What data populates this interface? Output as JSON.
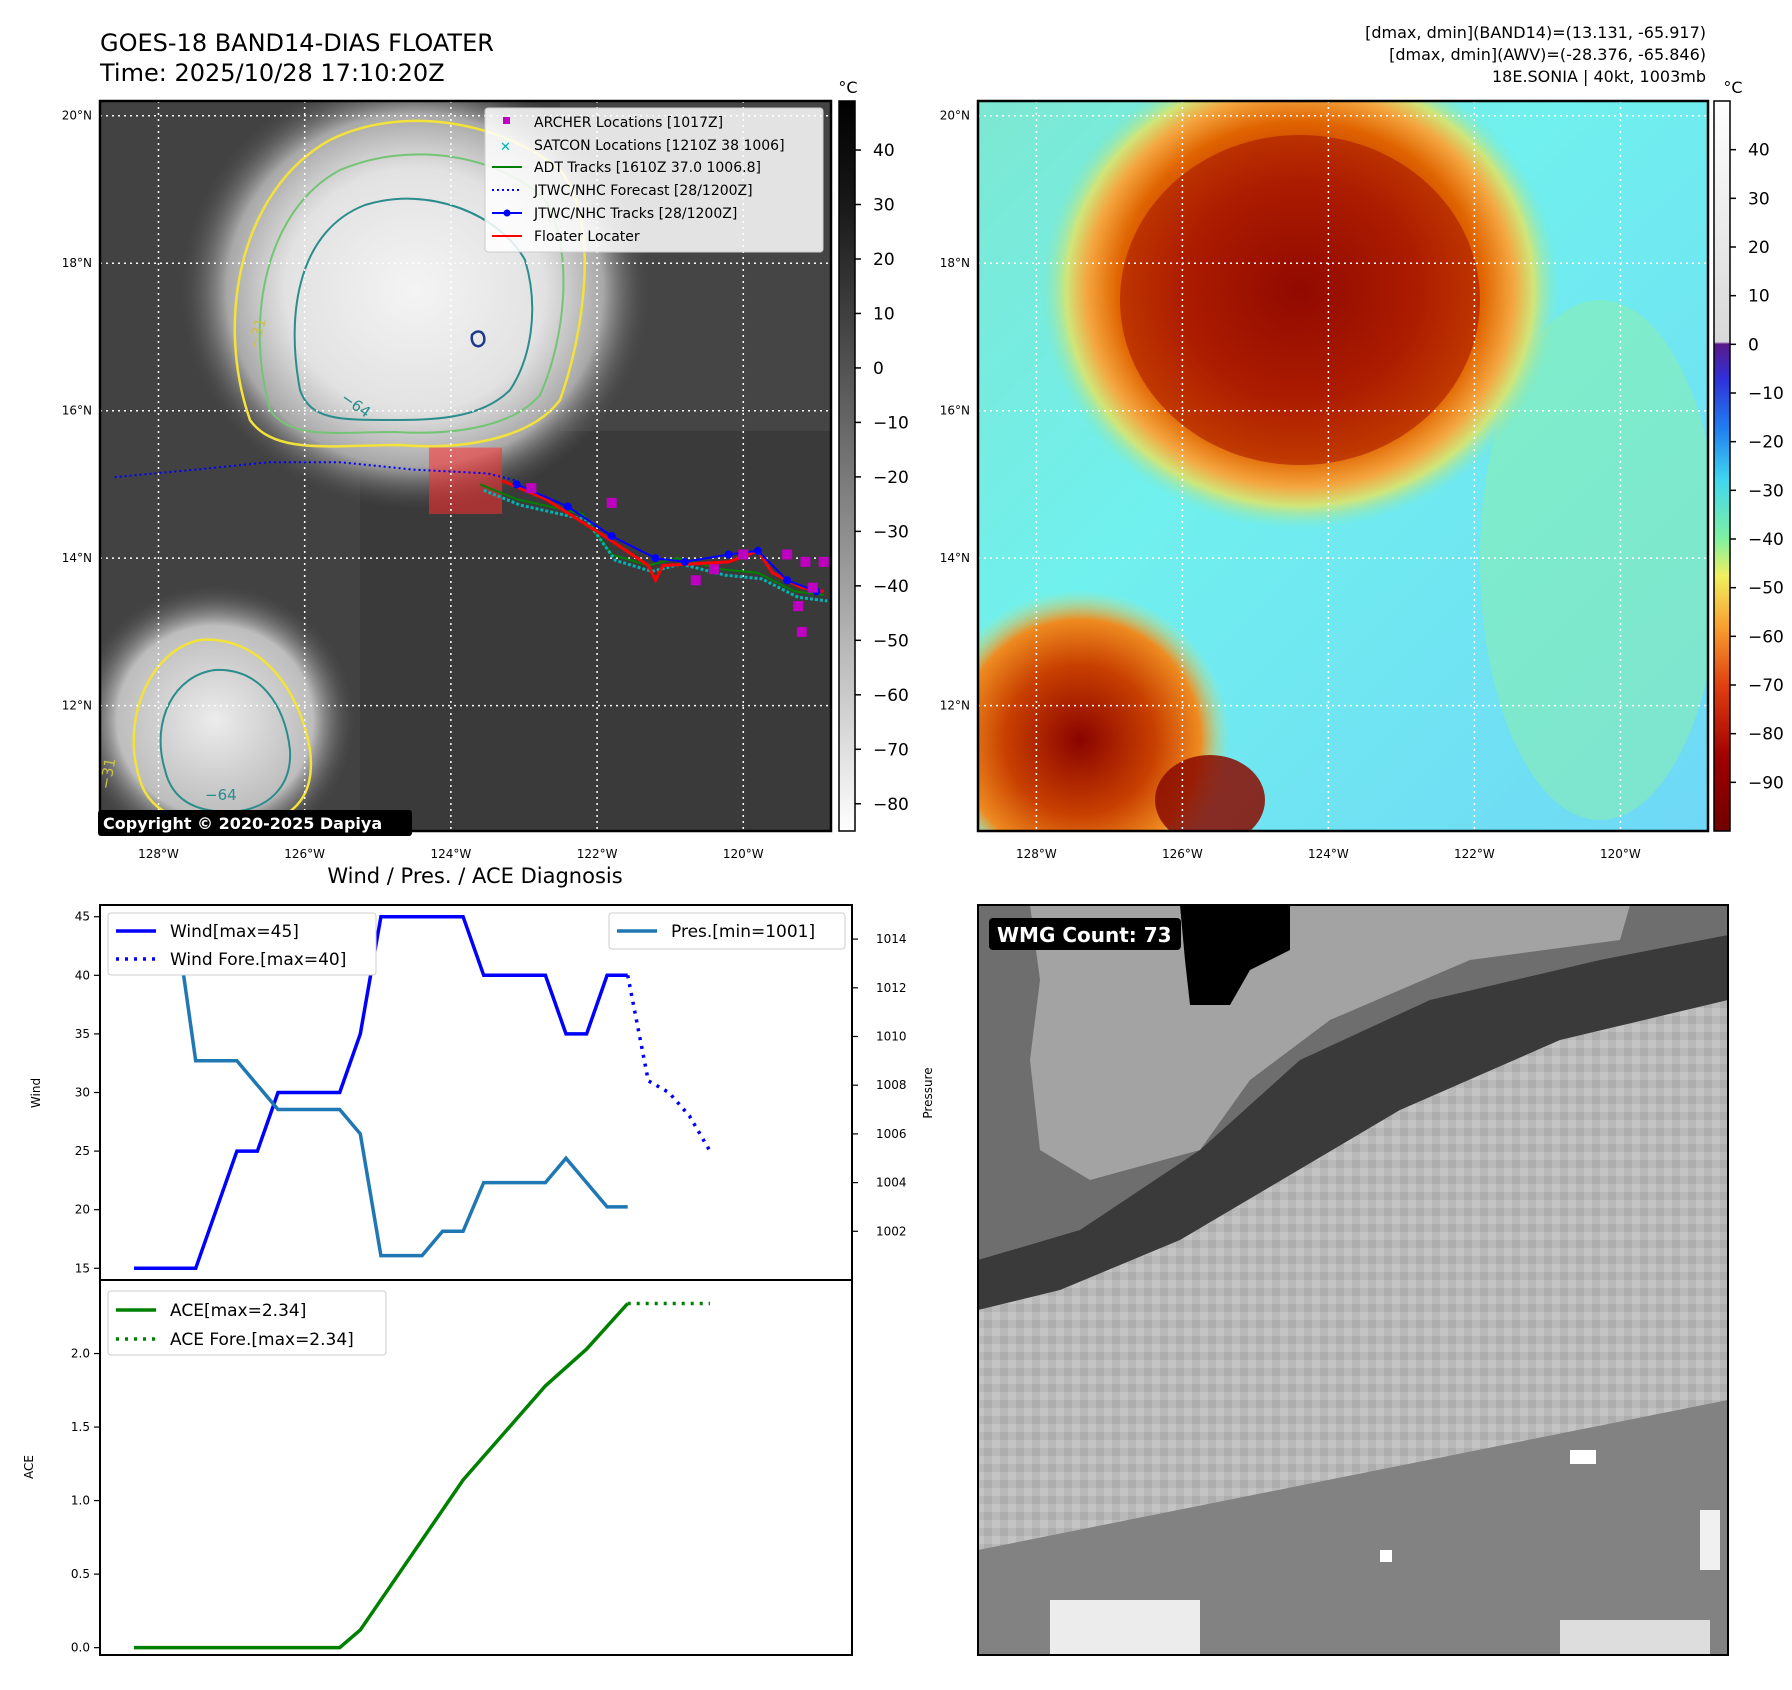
{
  "header": {
    "title_line1": "GOES-18 BAND14-DIAS FLOATER",
    "title_line2": "Time: 2025/10/28 17:10:20Z",
    "info_line1": "[dmax, dmin](BAND14)=(13.131, -65.917)",
    "info_line2": "[dmax, dmin](AWV)=(-28.376, -65.846)",
    "info_line3": "18E.SONIA | 40kt, 1003mb"
  },
  "copyright": "Copyright © 2020-2025 Dapiya",
  "wmg_label": "WMG Count: 73",
  "colors": {
    "wind": "#0000ff",
    "pressure": "#1f77b4",
    "ace": "#008000",
    "archer": "#c000c0",
    "satcon": "#00b4b4",
    "adt": "#008000",
    "floater": "#ff0000",
    "contour_yellow": "#f2e23a",
    "contour_teal": "#2b8c8c"
  },
  "chart_data": [
    {
      "type": "map",
      "panel": "band14",
      "lat_ticks": [
        "20°N",
        "18°N",
        "16°N",
        "14°N",
        "12°N"
      ],
      "lon_ticks": [
        "128°W",
        "126°W",
        "124°W",
        "122°W",
        "120°W"
      ],
      "xlim": [
        -128.8,
        -118.8
      ],
      "ylim": [
        10.3,
        20.2
      ],
      "colorbar": {
        "unit": "°C",
        "ticks": [
          "40",
          "30",
          "20",
          "10",
          "0",
          "−10",
          "−20",
          "−30",
          "−40",
          "−50",
          "−60",
          "−70",
          "−80"
        ],
        "range": [
          -85,
          49
        ]
      },
      "contour_labels": [
        "−64",
        "−64",
        "−31",
        "−31"
      ],
      "legend": [
        {
          "label": "ARCHER Locations [1017Z]",
          "marker": "square",
          "color": "#c000c0"
        },
        {
          "label": "SATCON Locations [1210Z 38 1006]",
          "marker": "x",
          "color": "#00b4b4"
        },
        {
          "label": "ADT Tracks [1610Z 37.0 1006.8]",
          "marker": "line",
          "color": "#008000"
        },
        {
          "label": "JTWC/NHC Forecast [28/1200Z]",
          "marker": "dotted",
          "color": "#0000ff"
        },
        {
          "label": "JTWC/NHC Tracks [28/1200Z]",
          "marker": "line-dot",
          "color": "#0000ff"
        },
        {
          "label": "Floater Locater",
          "marker": "line",
          "color": "#ff0000"
        }
      ],
      "forecast_track": [
        [
          -128.6,
          15.1
        ],
        [
          -127.5,
          15.2
        ],
        [
          -126.5,
          15.3
        ],
        [
          -125.5,
          15.3
        ],
        [
          -124.5,
          15.2
        ],
        [
          -123.5,
          15.15
        ],
        [
          -123.1,
          15.05
        ]
      ],
      "best_track": [
        [
          -123.1,
          15.0
        ],
        [
          -122.4,
          14.7
        ],
        [
          -121.8,
          14.3
        ],
        [
          -121.2,
          14.0
        ],
        [
          -120.8,
          13.95
        ],
        [
          -120.2,
          14.05
        ],
        [
          -119.8,
          14.1
        ],
        [
          -119.4,
          13.7
        ],
        [
          -119.0,
          13.55
        ]
      ],
      "archer_points": [
        [
          -122.9,
          14.95
        ],
        [
          -121.8,
          14.75
        ],
        [
          -120.4,
          13.85
        ],
        [
          -120.65,
          13.7
        ],
        [
          -119.4,
          14.05
        ],
        [
          -119.15,
          13.95
        ],
        [
          -118.9,
          13.95
        ],
        [
          -119.05,
          13.6
        ],
        [
          -119.25,
          13.35
        ],
        [
          -119.2,
          13.0
        ],
        [
          -120.0,
          14.05
        ]
      ],
      "adt_track": [
        [
          -123.6,
          15.0
        ],
        [
          -123.1,
          14.8
        ],
        [
          -122.2,
          14.6
        ],
        [
          -121.8,
          14.05
        ],
        [
          -121.3,
          13.9
        ],
        [
          -120.9,
          14.0
        ],
        [
          -120.3,
          13.85
        ],
        [
          -119.8,
          13.8
        ],
        [
          -119.3,
          13.55
        ],
        [
          -118.9,
          13.5
        ]
      ],
      "floater_track": [
        [
          -123.3,
          15.05
        ],
        [
          -122.7,
          14.8
        ],
        [
          -121.9,
          14.3
        ],
        [
          -121.3,
          13.9
        ],
        [
          -121.2,
          13.7
        ],
        [
          -121.1,
          13.9
        ],
        [
          -120.2,
          13.95
        ],
        [
          -119.8,
          14.1
        ],
        [
          -119.6,
          13.8
        ],
        [
          -119.2,
          13.6
        ],
        [
          -118.9,
          13.55
        ]
      ],
      "floater_box": {
        "lon": [
          -124.3,
          -123.3
        ],
        "lat": [
          14.6,
          15.5
        ]
      }
    },
    {
      "type": "map",
      "panel": "awv",
      "lat_ticks": [
        "20°N",
        "18°N",
        "16°N",
        "14°N",
        "12°N"
      ],
      "lon_ticks": [
        "128°W",
        "126°W",
        "124°W",
        "122°W",
        "120°W"
      ],
      "xlim": [
        -128.8,
        -118.8
      ],
      "ylim": [
        10.3,
        20.2
      ],
      "colorbar": {
        "unit": "°C",
        "ticks": [
          "40",
          "30",
          "20",
          "10",
          "0",
          "−10",
          "−20",
          "−30",
          "−40",
          "−50",
          "−60",
          "−70",
          "−80",
          "−90"
        ],
        "range": [
          -100,
          50
        ]
      }
    },
    {
      "type": "line",
      "panel": "wind_pressure",
      "title": "Wind / Pres. / ACE Diagnosis",
      "ylabel": "Wind",
      "ylabel_right": "Pressure",
      "ylim": [
        14,
        46
      ],
      "ylim_right": [
        1000,
        1015.4
      ],
      "yticks": [
        "45",
        "40",
        "35",
        "30",
        "25",
        "20",
        "15"
      ],
      "yticks_right": [
        "1014",
        "1012",
        "1010",
        "1008",
        "1006",
        "1004",
        "1002"
      ],
      "x": [
        0,
        1,
        2,
        3,
        4,
        5,
        6,
        7,
        8,
        9,
        10,
        11,
        12,
        13,
        14,
        15,
        16,
        17,
        18,
        19,
        20,
        21,
        22,
        23,
        24,
        25,
        26,
        27,
        28
      ],
      "series": [
        {
          "name": "Wind[max=45]",
          "style": "solid",
          "x": [
            0,
            3,
            5,
            6,
            7,
            10,
            11,
            12,
            16,
            17,
            20,
            21,
            22,
            23,
            24
          ],
          "values": [
            15,
            15,
            25,
            25,
            30,
            30,
            35,
            45,
            45,
            40,
            40,
            35,
            35,
            40,
            40
          ]
        },
        {
          "name": "Wind Fore.[max=40]",
          "style": "dotted",
          "x": [
            24,
            25,
            26,
            27,
            28
          ],
          "values": [
            40,
            31,
            30,
            28,
            25
          ]
        },
        {
          "name": "Pres.[min=1001]",
          "style": "solid",
          "axis": "right",
          "x": [
            0,
            2,
            3,
            5,
            7,
            10,
            11,
            12,
            14,
            15,
            16,
            17,
            20,
            21,
            23,
            24
          ],
          "values": [
            1015,
            1015,
            1009,
            1009,
            1007,
            1007,
            1006,
            1001,
            1001,
            1002,
            1002,
            1004,
            1004,
            1005,
            1003,
            1003
          ]
        }
      ]
    },
    {
      "type": "line",
      "panel": "ace",
      "ylabel": "ACE",
      "ylim": [
        -0.05,
        2.5
      ],
      "yticks": [
        "2.0",
        "1.5",
        "1.0",
        "0.5",
        "0.0"
      ],
      "series": [
        {
          "name": "ACE[max=2.34]",
          "style": "solid",
          "x": [
            0,
            10,
            11,
            16,
            20,
            22,
            24
          ],
          "values": [
            0,
            0,
            0.12,
            1.14,
            1.78,
            2.03,
            2.34
          ]
        },
        {
          "name": "ACE Fore.[max=2.34]",
          "style": "dotted",
          "x": [
            24,
            28
          ],
          "values": [
            2.34,
            2.34
          ]
        }
      ]
    }
  ]
}
